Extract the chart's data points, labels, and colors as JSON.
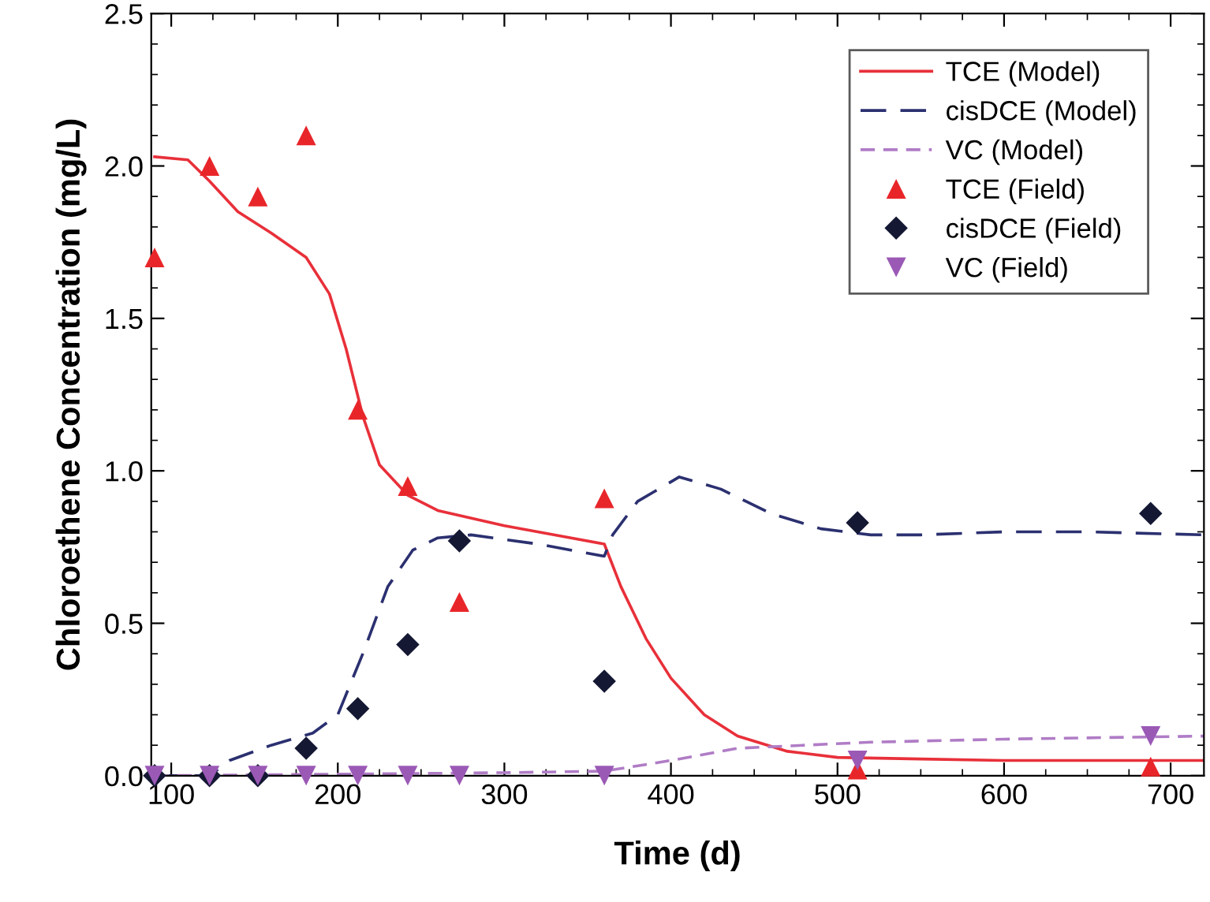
{
  "chart_data": {
    "type": "line",
    "xlabel": "Time (d)",
    "ylabel": "Chloroethene Concentration (mg/L)",
    "xlim": [
      88,
      720
    ],
    "ylim": [
      0,
      2.5
    ],
    "xticks": [
      100,
      200,
      300,
      400,
      500,
      600,
      700
    ],
    "yticks": [
      {
        "value": 0,
        "label": "0.0"
      },
      {
        "value": 0.5,
        "label": "0.5"
      },
      {
        "value": 1,
        "label": "1.0"
      },
      {
        "value": 1.5,
        "label": "1.5"
      },
      {
        "value": 2,
        "label": "2.0"
      },
      {
        "value": 2.5,
        "label": "2.5"
      }
    ],
    "grid": false,
    "legend": "top right",
    "series": [
      {
        "name": "TCE (Model)",
        "line_style": "solid",
        "marker": "none",
        "color": "#e8303a",
        "x": [
          90,
          110,
          123,
          140,
          160,
          181,
          195,
          205,
          215,
          225,
          242,
          260,
          300,
          340,
          360,
          370,
          385,
          400,
          420,
          440,
          470,
          500,
          550,
          600,
          650,
          720
        ],
        "values": [
          2.03,
          2.02,
          1.95,
          1.85,
          1.78,
          1.7,
          1.58,
          1.4,
          1.18,
          1.02,
          0.92,
          0.87,
          0.82,
          0.78,
          0.76,
          0.62,
          0.45,
          0.32,
          0.2,
          0.13,
          0.08,
          0.06,
          0.055,
          0.05,
          0.05,
          0.05
        ]
      },
      {
        "name": "cisDCE (Model)",
        "line_style": "dashed",
        "marker": "none",
        "color": "#2b3070",
        "x": [
          90,
          123,
          135,
          160,
          185,
          200,
          215,
          230,
          245,
          260,
          280,
          320,
          360,
          365,
          380,
          405,
          430,
          460,
          490,
          520,
          550,
          600,
          650,
          720
        ],
        "values": [
          0,
          0,
          0.05,
          0.1,
          0.14,
          0.2,
          0.4,
          0.62,
          0.74,
          0.78,
          0.79,
          0.76,
          0.72,
          0.79,
          0.9,
          0.98,
          0.94,
          0.86,
          0.81,
          0.79,
          0.79,
          0.8,
          0.8,
          0.79
        ]
      },
      {
        "name": "VC (Model)",
        "line_style": "dashed",
        "marker": "none",
        "color": "#b07cc6",
        "x": [
          90,
          200,
          300,
          360,
          400,
          440,
          480,
          520,
          600,
          720
        ],
        "values": [
          0,
          0.005,
          0.01,
          0.015,
          0.05,
          0.09,
          0.1,
          0.11,
          0.12,
          0.13
        ]
      },
      {
        "name": "TCE (Field)",
        "type": "scatter",
        "marker": "triangle",
        "color": "#e8262a",
        "x": [
          90,
          123,
          152,
          181,
          212,
          242,
          273,
          360,
          512,
          688
        ],
        "values": [
          1.7,
          2.0,
          1.9,
          2.1,
          1.2,
          0.95,
          0.57,
          0.91,
          0.02,
          0.03
        ]
      },
      {
        "name": "cisDCE (Field)",
        "type": "scatter",
        "marker": "diamond",
        "color": "#141833",
        "x": [
          90,
          123,
          152,
          181,
          212,
          242,
          273,
          360,
          512,
          688
        ],
        "values": [
          0,
          0,
          0,
          0.09,
          0.22,
          0.43,
          0.77,
          0.31,
          0.83,
          0.86
        ]
      },
      {
        "name": "VC (Field)",
        "type": "scatter",
        "marker": "triangle_down",
        "color": "#9b59b6",
        "x": [
          90,
          123,
          152,
          181,
          212,
          242,
          273,
          360,
          512,
          688
        ],
        "values": [
          0,
          0,
          0,
          0,
          0,
          0,
          0,
          0,
          0.05,
          0.13
        ]
      }
    ]
  }
}
